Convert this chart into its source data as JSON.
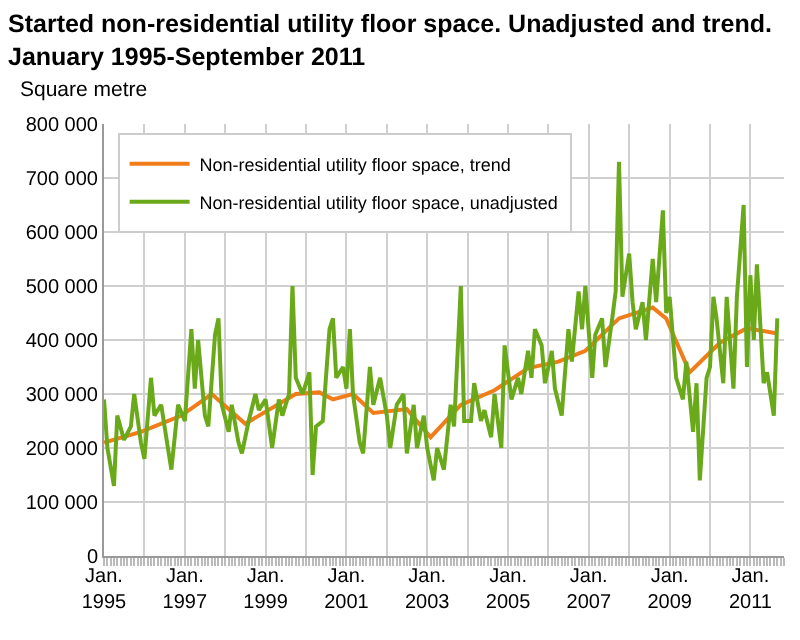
{
  "chart_data": {
    "type": "line",
    "title": "Started non-residential utility floor space. Unadjusted and trend.\nJanuary 1995-September 2011",
    "ylabel": "Square metre",
    "xlim": [
      "1995-01-01",
      "2011-11-01"
    ],
    "ylim": [
      0,
      800000
    ],
    "xticks": [
      {
        "value": "1995-01",
        "label": "Jan.\n1995"
      },
      {
        "value": "1996-01",
        "label": null
      },
      {
        "value": "1997-01",
        "label": "Jan.\n1997"
      },
      {
        "value": "1998-01",
        "label": null
      },
      {
        "value": "1999-01",
        "label": "Jan.\n1999"
      },
      {
        "value": "2000-01",
        "label": null
      },
      {
        "value": "2001-01",
        "label": "Jan.\n2001"
      },
      {
        "value": "2002-01",
        "label": null
      },
      {
        "value": "2003-01",
        "label": "Jan.\n2003"
      },
      {
        "value": "2004-01",
        "label": null
      },
      {
        "value": "2005-01",
        "label": "Jan.\n2005"
      },
      {
        "value": "2006-01",
        "label": null
      },
      {
        "value": "2007-01",
        "label": "Jan.\n2007"
      },
      {
        "value": "2008-01",
        "label": null
      },
      {
        "value": "2009-01",
        "label": "Jan.\n2009"
      },
      {
        "value": "2010-01",
        "label": null
      },
      {
        "value": "2011-01",
        "label": "Jan.\n2011"
      }
    ],
    "yticks": [
      {
        "value": 0,
        "label": "0"
      },
      {
        "value": 100000,
        "label": "100 000"
      },
      {
        "value": 200000,
        "label": "200 000"
      },
      {
        "value": 300000,
        "label": "300 000"
      },
      {
        "value": 400000,
        "label": "400 000"
      },
      {
        "value": 500000,
        "label": "500 000"
      },
      {
        "value": 600000,
        "label": "600 000"
      },
      {
        "value": 700000,
        "label": "700 000"
      },
      {
        "value": 800000,
        "label": "800 000"
      }
    ],
    "grid": true,
    "legend": "top left",
    "marker": "none",
    "line_style": "solid",
    "series": [
      {
        "name": "Non-residential utility floor space, trend",
        "color": "#f07d1a",
        "x": [
          "1995-01",
          "1995-12",
          "1996-12",
          "1997-09",
          "1998-07",
          "1999-10",
          "2000-05",
          "2000-09",
          "2001-03",
          "2001-09",
          "2002-07",
          "2003-02",
          "2003-11",
          "2004-09",
          "2005-07",
          "2006-04",
          "2006-12",
          "2007-10",
          "2008-08",
          "2008-12",
          "2009-07",
          "2010-04",
          "2010-12",
          "2011-09"
        ],
        "values": [
          210000,
          230000,
          260000,
          300000,
          245000,
          300000,
          303000,
          290000,
          300000,
          265000,
          272000,
          220000,
          280000,
          307000,
          348000,
          360000,
          380000,
          440000,
          460000,
          440000,
          340000,
          395000,
          422000,
          412000
        ]
      },
      {
        "name": "Non-residential utility floor space, unadjusted",
        "color": "#6aaa1a",
        "x": [
          "1995-01",
          "1995-02",
          "1995-04",
          "1995-05",
          "1995-07",
          "1995-09",
          "1995-10",
          "1995-12",
          "1996-01",
          "1996-03",
          "1996-04",
          "1996-06",
          "1996-08",
          "1996-09",
          "1996-11",
          "1997-01",
          "1997-03",
          "1997-04",
          "1997-05",
          "1997-07",
          "1997-08",
          "1997-10",
          "1997-11",
          "1997-12",
          "1998-02",
          "1998-03",
          "1998-05",
          "1998-06",
          "1998-08",
          "1998-10",
          "1998-11",
          "1999-01",
          "1999-03",
          "1999-05",
          "1999-06",
          "1999-08",
          "1999-09",
          "1999-10",
          "1999-12",
          "2000-02",
          "2000-03",
          "2000-04",
          "2000-06",
          "2000-08",
          "2000-09",
          "2000-10",
          "2000-12",
          "2001-01",
          "2001-02",
          "2001-03",
          "2001-05",
          "2001-06",
          "2001-08",
          "2001-09",
          "2001-11",
          "2002-01",
          "2002-02",
          "2002-04",
          "2002-06",
          "2002-07",
          "2002-09",
          "2002-10",
          "2002-12",
          "2003-01",
          "2003-03",
          "2003-04",
          "2003-06",
          "2003-08",
          "2003-09",
          "2003-11",
          "2003-12",
          "2004-02",
          "2004-03",
          "2004-05",
          "2004-06",
          "2004-08",
          "2004-09",
          "2004-11",
          "2004-12",
          "2005-02",
          "2005-04",
          "2005-05",
          "2005-07",
          "2005-08",
          "2005-09",
          "2005-11",
          "2005-12",
          "2006-02",
          "2006-03",
          "2006-05",
          "2006-07",
          "2006-08",
          "2006-10",
          "2006-11",
          "2006-12",
          "2007-02",
          "2007-03",
          "2007-05",
          "2007-06",
          "2007-08",
          "2007-09",
          "2007-10",
          "2007-11",
          "2008-01",
          "2008-02",
          "2008-03",
          "2008-05",
          "2008-06",
          "2008-08",
          "2008-09",
          "2008-11",
          "2008-12",
          "2009-01",
          "2009-03",
          "2009-05",
          "2009-06",
          "2009-08",
          "2009-09",
          "2009-10",
          "2009-12",
          "2010-01",
          "2010-02",
          "2010-03",
          "2010-05",
          "2010-06",
          "2010-08",
          "2010-09",
          "2010-11",
          "2010-12",
          "2011-01",
          "2011-02",
          "2011-03",
          "2011-05",
          "2011-06",
          "2011-08",
          "2011-09"
        ],
        "values": [
          290000,
          200000,
          130000,
          260000,
          215000,
          240000,
          300000,
          210000,
          180000,
          330000,
          260000,
          280000,
          200000,
          160000,
          280000,
          250000,
          420000,
          310000,
          400000,
          260000,
          240000,
          410000,
          440000,
          280000,
          230000,
          280000,
          210000,
          190000,
          250000,
          300000,
          270000,
          290000,
          200000,
          290000,
          260000,
          300000,
          500000,
          330000,
          300000,
          340000,
          150000,
          240000,
          250000,
          420000,
          440000,
          330000,
          350000,
          310000,
          420000,
          300000,
          210000,
          190000,
          350000,
          280000,
          330000,
          260000,
          200000,
          280000,
          300000,
          190000,
          280000,
          200000,
          260000,
          200000,
          140000,
          200000,
          160000,
          280000,
          240000,
          500000,
          250000,
          250000,
          320000,
          250000,
          270000,
          220000,
          300000,
          200000,
          390000,
          290000,
          330000,
          300000,
          380000,
          330000,
          420000,
          390000,
          320000,
          380000,
          310000,
          260000,
          420000,
          360000,
          490000,
          420000,
          500000,
          330000,
          410000,
          440000,
          350000,
          440000,
          490000,
          730000,
          480000,
          560000,
          470000,
          420000,
          470000,
          400000,
          550000,
          470000,
          640000,
          450000,
          480000,
          330000,
          290000,
          360000,
          230000,
          320000,
          140000,
          330000,
          350000,
          480000,
          440000,
          320000,
          480000,
          310000,
          480000,
          650000,
          350000,
          520000,
          400000,
          540000,
          320000,
          340000,
          260000,
          440000
        ]
      }
    ]
  }
}
